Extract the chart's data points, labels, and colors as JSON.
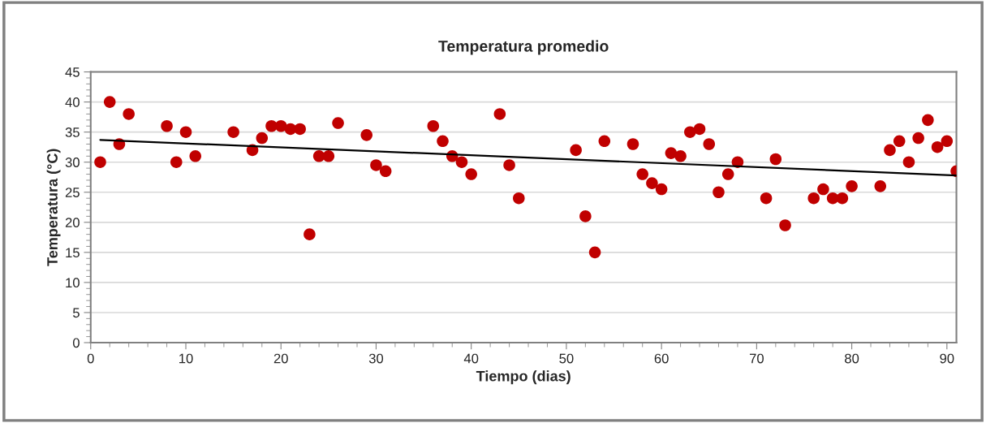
{
  "chart_data": {
    "type": "scatter",
    "title": "Temperatura promedio",
    "xlabel": "Tiempo (dias)",
    "ylabel": "Temperatura (°C)",
    "xlim": [
      0,
      91
    ],
    "xticks": [
      0,
      10,
      20,
      30,
      40,
      50,
      60,
      70,
      80,
      90
    ],
    "ylim": [
      0,
      45
    ],
    "yticks": [
      0,
      5,
      10,
      15,
      20,
      25,
      30,
      35,
      40,
      45
    ],
    "grid": "y",
    "legend": false,
    "series": [
      {
        "marker": "circle",
        "color": "#c00000",
        "x": [
          1,
          2,
          3,
          4,
          8,
          9,
          10,
          11,
          15,
          17,
          18,
          19,
          20,
          21,
          22,
          23,
          24,
          25,
          26,
          29,
          30,
          31,
          36,
          37,
          38,
          39,
          40,
          43,
          44,
          45,
          51,
          52,
          53,
          54,
          57,
          58,
          59,
          60,
          61,
          62,
          63,
          64,
          65,
          66,
          67,
          68,
          71,
          72,
          73,
          76,
          77,
          78,
          79,
          80,
          83,
          84,
          85,
          86,
          87,
          88,
          89,
          90,
          91
        ],
        "values": [
          30,
          40,
          33,
          38,
          36,
          30,
          35,
          31,
          35,
          32,
          34,
          36,
          36,
          35.5,
          35.5,
          18,
          31,
          31,
          36.5,
          34.5,
          29.5,
          28.5,
          36,
          33.5,
          31,
          30,
          28,
          38,
          29.5,
          24,
          32,
          21,
          15,
          33.5,
          33,
          28,
          26.5,
          25.5,
          31.5,
          31,
          35,
          35.5,
          33,
          25,
          28,
          30,
          24,
          30.5,
          19.5,
          24,
          25.5,
          24,
          24,
          26,
          26,
          32,
          33.5,
          30,
          34,
          37,
          32.5,
          33.5,
          28.5
        ]
      },
      {
        "type": "line",
        "color": "#000000",
        "x": [
          1,
          91
        ],
        "values": [
          33.7,
          27.8
        ]
      }
    ]
  }
}
